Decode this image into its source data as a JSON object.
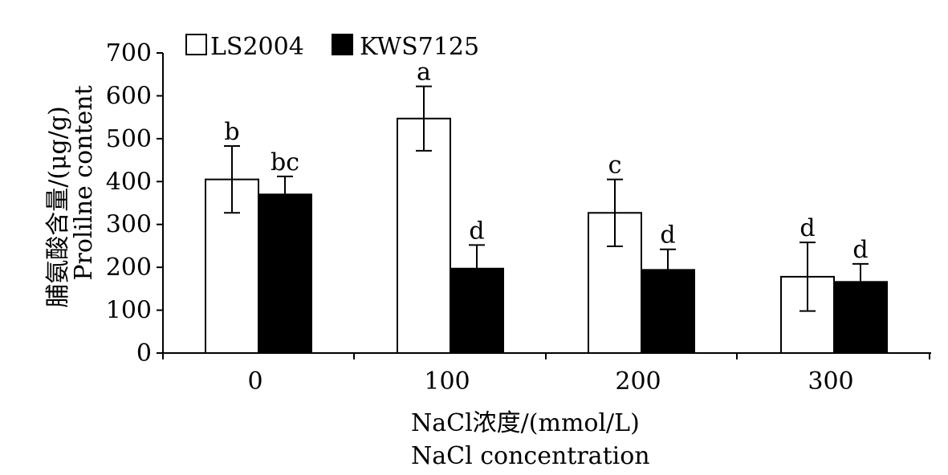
{
  "chart_data": {
    "type": "bar",
    "xlabel": [
      "NaCl浓度/(mmol/L)",
      "NaCl concentration"
    ],
    "ylabel": [
      "脯氨酸含量/(μg/g)",
      "Prolilne content"
    ],
    "categories": [
      "0",
      "100",
      "200",
      "300"
    ],
    "ylim": [
      0,
      700
    ],
    "yticks": [
      "0",
      "100",
      "200",
      "300",
      "400",
      "500",
      "600",
      "700"
    ],
    "grid": false,
    "legend_position": "top-left",
    "series": [
      {
        "name": "LS2004",
        "fill": "#ffffff",
        "values": [
          405,
          547,
          327,
          178
        ],
        "errors": [
          78,
          75,
          78,
          80
        ],
        "labels": [
          "b",
          "a",
          "c",
          "d"
        ]
      },
      {
        "name": "KWS7125",
        "fill": "#000000",
        "values": [
          370,
          197,
          194,
          166
        ],
        "errors": [
          42,
          55,
          48,
          42
        ],
        "labels": [
          "bc",
          "d",
          "d",
          "d"
        ]
      }
    ]
  },
  "colors": {
    "axis": "#000000",
    "bar_outline": "#000000"
  }
}
